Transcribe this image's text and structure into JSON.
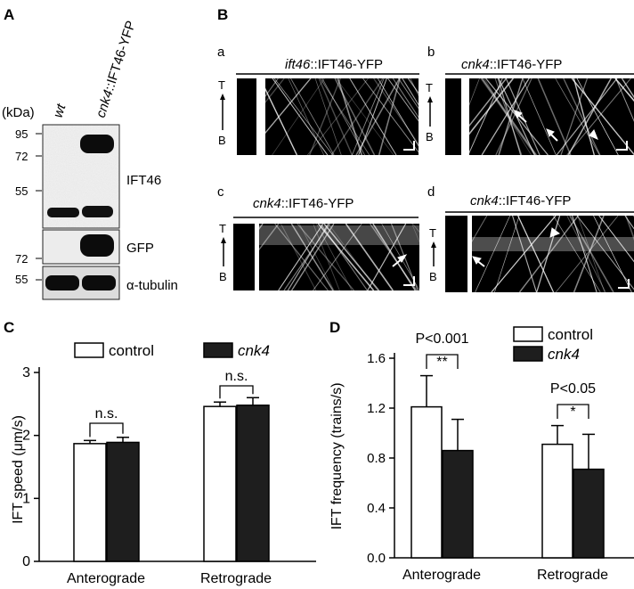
{
  "panelA": {
    "label": "A",
    "kda": "(kDa)",
    "lane_wt": "wt",
    "lane_cnk4_italic": "cnk4",
    "lane_cnk4_rest": "::IFT46-YFP",
    "markers_top": [
      "95",
      "72",
      "55"
    ],
    "markers_mid": [
      "72"
    ],
    "markers_bot": [
      "55"
    ],
    "blot_labels": [
      "IFT46",
      "GFP",
      "α-tubulin"
    ]
  },
  "panelB": {
    "label": "B",
    "sub": [
      {
        "letter": "a",
        "title_italic": "ift46",
        "title_rest": "::IFT46-YFP"
      },
      {
        "letter": "b",
        "title_italic": "cnk4",
        "title_rest": "::IFT46-YFP"
      },
      {
        "letter": "c",
        "title_italic": "cnk4",
        "title_rest": "::IFT46-YFP"
      },
      {
        "letter": "d",
        "title_italic": "cnk4",
        "title_rest": "::IFT46-YFP"
      }
    ],
    "axis_top": "T",
    "axis_bottom": "B"
  },
  "chart_data": [
    {
      "panel": "C",
      "type": "bar",
      "categories": [
        "Anterograde",
        "Retrograde"
      ],
      "series": [
        {
          "name": "control",
          "values": [
            1.87,
            2.46
          ],
          "errors": [
            0.05,
            0.07
          ],
          "fill": "#ffffff"
        },
        {
          "name": "cnk4",
          "values": [
            1.89,
            2.48
          ],
          "errors": [
            0.08,
            0.12
          ],
          "fill": "#1e1e1e"
        }
      ],
      "ylabel": "IFT speed (μm/s)",
      "ylim": [
        0,
        3
      ],
      "yticks": [
        "0",
        "1",
        "2",
        "3"
      ],
      "annotations": [
        "n.s.",
        "n.s."
      ]
    },
    {
      "panel": "D",
      "type": "bar",
      "categories": [
        "Anterograde",
        "Retrograde"
      ],
      "series": [
        {
          "name": "control",
          "values": [
            1.21,
            0.91
          ],
          "errors": [
            0.25,
            0.15
          ],
          "fill": "#ffffff"
        },
        {
          "name": "cnk4",
          "values": [
            0.86,
            0.71
          ],
          "errors": [
            0.25,
            0.28
          ],
          "fill": "#1e1e1e"
        }
      ],
      "ylabel": "IFT frequency (trains/s)",
      "ylim": [
        0,
        1.6
      ],
      "yticks": [
        "0.0",
        "0.4",
        "0.8",
        "1.2",
        "1.6"
      ],
      "annotations": [
        [
          "P<0.001",
          "**"
        ],
        [
          "P<0.05",
          "*"
        ]
      ]
    }
  ]
}
